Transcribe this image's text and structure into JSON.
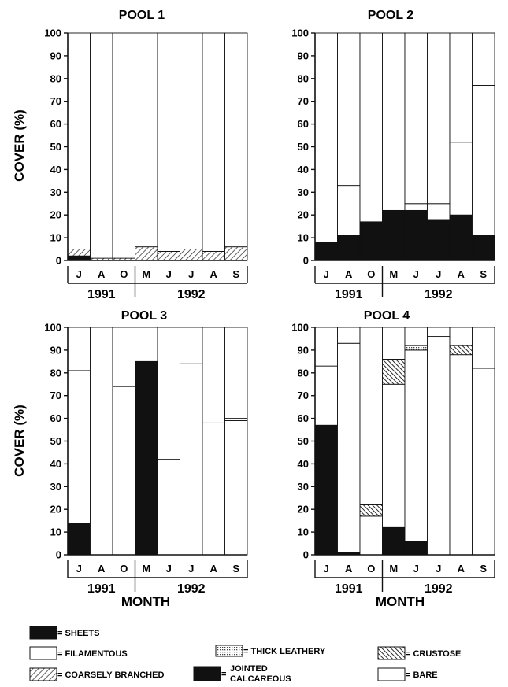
{
  "figure": {
    "ylabel": "COVER (%)",
    "xlabel": "MONTH",
    "yticks": [
      "0",
      "10",
      "20",
      "30",
      "40",
      "50",
      "60",
      "70",
      "80",
      "90",
      "100"
    ],
    "months": [
      "J",
      "A",
      "O",
      "M",
      "J",
      "J",
      "A",
      "S"
    ],
    "years": [
      "1991",
      "1992"
    ]
  },
  "legend": [
    {
      "key": "sheets",
      "label": "SHEETS",
      "pattern": "solid"
    },
    {
      "key": "filamentous",
      "label": "FILAMENTOUS",
      "pattern": "white"
    },
    {
      "key": "coarsely_branched",
      "label": "COARSELY BRANCHED",
      "pattern": "hatch"
    },
    {
      "key": "thick_leathery",
      "label": "THICK LEATHERY",
      "pattern": "stipple"
    },
    {
      "key": "jointed_calcareous",
      "label": "JOINTED CALCAREOUS",
      "pattern": "solid"
    },
    {
      "key": "crustose",
      "label": "CRUSTOSE",
      "pattern": "crosshatch"
    },
    {
      "key": "bare",
      "label": "BARE",
      "pattern": "white"
    }
  ],
  "chart_data": [
    {
      "type": "bar",
      "title": "POOL 1",
      "categories": [
        "J",
        "A",
        "O",
        "M",
        "J",
        "J",
        "A",
        "S"
      ],
      "ylim": [
        0,
        100
      ],
      "series": [
        {
          "name": "SHEETS",
          "values": [
            2,
            0,
            0,
            0,
            0,
            0,
            0,
            0
          ]
        },
        {
          "name": "COARSELY BRANCHED",
          "values": [
            3,
            1,
            1,
            6,
            4,
            5,
            4,
            6
          ]
        },
        {
          "name": "BARE",
          "values": [
            95,
            99,
            99,
            94,
            96,
            95,
            96,
            94
          ]
        }
      ]
    },
    {
      "type": "bar",
      "title": "POOL 2",
      "categories": [
        "J",
        "A",
        "O",
        "M",
        "J",
        "J",
        "A",
        "S"
      ],
      "ylim": [
        0,
        100
      ],
      "series": [
        {
          "name": "SHEETS",
          "values": [
            8,
            11,
            17,
            22,
            22,
            18,
            20,
            11
          ]
        },
        {
          "name": "FILAMENTOUS",
          "values": [
            0,
            22,
            0,
            0,
            3,
            7,
            32,
            66
          ]
        },
        {
          "name": "BARE",
          "values": [
            92,
            67,
            83,
            78,
            75,
            75,
            48,
            23
          ]
        }
      ]
    },
    {
      "type": "bar",
      "title": "POOL 3",
      "categories": [
        "J",
        "A",
        "O",
        "M",
        "J",
        "J",
        "A",
        "S"
      ],
      "ylim": [
        0,
        100
      ],
      "series": [
        {
          "name": "SHEETS",
          "values": [
            14,
            0,
            0,
            85,
            0,
            0,
            0,
            0
          ]
        },
        {
          "name": "FILAMENTOUS",
          "values": [
            67,
            100,
            74,
            0,
            42,
            84,
            58,
            59
          ]
        },
        {
          "name": "THICK LEATHERY",
          "values": [
            0,
            0,
            0,
            0,
            0,
            0,
            0,
            1
          ]
        },
        {
          "name": "BARE",
          "values": [
            19,
            0,
            26,
            15,
            58,
            16,
            42,
            40
          ]
        }
      ]
    },
    {
      "type": "bar",
      "title": "POOL 4",
      "categories": [
        "J",
        "A",
        "O",
        "M",
        "J",
        "J",
        "A",
        "S"
      ],
      "ylim": [
        0,
        100
      ],
      "series": [
        {
          "name": "SHEETS",
          "values": [
            57,
            1,
            0,
            12,
            6,
            0,
            0,
            0
          ]
        },
        {
          "name": "FILAMENTOUS",
          "values": [
            26,
            92,
            17,
            63,
            84,
            96,
            88,
            82
          ]
        },
        {
          "name": "CRUSTOSE",
          "values": [
            0,
            0,
            5,
            11,
            0,
            0,
            4,
            0
          ]
        },
        {
          "name": "THICK LEATHERY",
          "values": [
            0,
            0,
            0,
            0,
            2,
            0,
            0,
            0
          ]
        },
        {
          "name": "BARE",
          "values": [
            17,
            7,
            78,
            14,
            8,
            4,
            8,
            18
          ]
        }
      ]
    }
  ]
}
